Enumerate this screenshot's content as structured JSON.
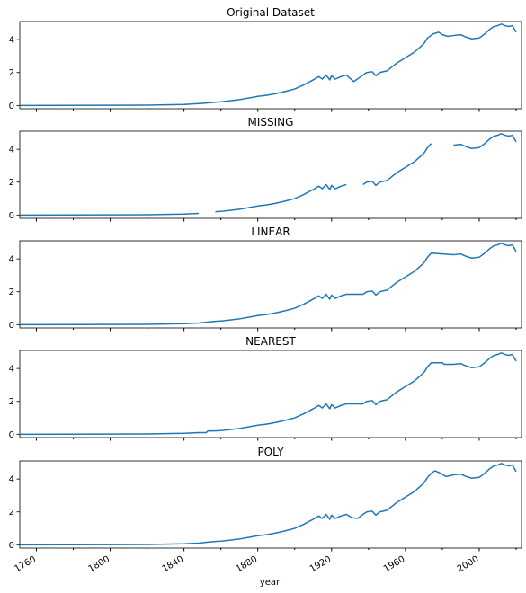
{
  "figure": {
    "xlabel": "year"
  },
  "chart_data": [
    {
      "type": "line",
      "title": "Original Dataset",
      "xlim": [
        1751,
        2020
      ],
      "ylim": [
        -0.2,
        5.1
      ],
      "yticks": [
        0,
        2,
        4
      ],
      "segments": [
        [
          [
            1751,
            0.0
          ],
          [
            1800,
            0.01
          ],
          [
            1820,
            0.02
          ],
          [
            1840,
            0.06
          ],
          [
            1850,
            0.13
          ],
          [
            1860,
            0.22
          ],
          [
            1870,
            0.35
          ],
          [
            1875,
            0.45
          ],
          [
            1880,
            0.55
          ],
          [
            1885,
            0.62
          ],
          [
            1890,
            0.72
          ],
          [
            1895,
            0.85
          ],
          [
            1900,
            1.0
          ],
          [
            1905,
            1.25
          ],
          [
            1910,
            1.55
          ],
          [
            1913,
            1.75
          ],
          [
            1915,
            1.6
          ],
          [
            1917,
            1.85
          ],
          [
            1919,
            1.55
          ],
          [
            1920,
            1.8
          ],
          [
            1922,
            1.6
          ],
          [
            1925,
            1.75
          ],
          [
            1928,
            1.85
          ],
          [
            1930,
            1.65
          ],
          [
            1932,
            1.45
          ],
          [
            1934,
            1.6
          ],
          [
            1937,
            1.85
          ],
          [
            1939,
            2.0
          ],
          [
            1942,
            2.05
          ],
          [
            1944,
            1.8
          ],
          [
            1946,
            2.0
          ],
          [
            1950,
            2.1
          ],
          [
            1955,
            2.55
          ],
          [
            1960,
            2.9
          ],
          [
            1965,
            3.25
          ],
          [
            1970,
            3.75
          ],
          [
            1972,
            4.1
          ],
          [
            1975,
            4.35
          ],
          [
            1978,
            4.45
          ],
          [
            1980,
            4.3
          ],
          [
            1983,
            4.2
          ],
          [
            1986,
            4.25
          ],
          [
            1990,
            4.3
          ],
          [
            1993,
            4.15
          ],
          [
            1996,
            4.05
          ],
          [
            2000,
            4.1
          ],
          [
            2003,
            4.35
          ],
          [
            2006,
            4.65
          ],
          [
            2008,
            4.8
          ],
          [
            2010,
            4.85
          ],
          [
            2012,
            4.95
          ],
          [
            2014,
            4.85
          ],
          [
            2016,
            4.8
          ],
          [
            2018,
            4.85
          ],
          [
            2020,
            4.45
          ]
        ]
      ]
    },
    {
      "type": "line",
      "title": "MISSING",
      "xlim": [
        1751,
        2020
      ],
      "ylim": [
        -0.2,
        5.1
      ],
      "yticks": [
        0,
        2,
        4
      ],
      "segments": [
        [
          [
            1751,
            0.0
          ],
          [
            1800,
            0.01
          ],
          [
            1820,
            0.02
          ],
          [
            1840,
            0.06
          ],
          [
            1848,
            0.1
          ]
        ],
        [
          [
            1857,
            0.2
          ],
          [
            1860,
            0.22
          ],
          [
            1870,
            0.35
          ],
          [
            1875,
            0.45
          ],
          [
            1880,
            0.55
          ],
          [
            1885,
            0.62
          ],
          [
            1890,
            0.72
          ],
          [
            1895,
            0.85
          ],
          [
            1900,
            1.0
          ],
          [
            1905,
            1.25
          ],
          [
            1910,
            1.55
          ],
          [
            1913,
            1.75
          ],
          [
            1915,
            1.6
          ],
          [
            1917,
            1.85
          ],
          [
            1919,
            1.55
          ],
          [
            1920,
            1.8
          ],
          [
            1922,
            1.6
          ],
          [
            1925,
            1.75
          ],
          [
            1928,
            1.85
          ]
        ],
        [
          [
            1937,
            1.85
          ],
          [
            1939,
            2.0
          ],
          [
            1942,
            2.05
          ],
          [
            1944,
            1.8
          ],
          [
            1946,
            2.0
          ],
          [
            1950,
            2.1
          ],
          [
            1955,
            2.55
          ],
          [
            1960,
            2.9
          ],
          [
            1965,
            3.25
          ],
          [
            1970,
            3.75
          ],
          [
            1972,
            4.1
          ],
          [
            1974,
            4.35
          ]
        ],
        [
          [
            1986,
            4.25
          ],
          [
            1990,
            4.3
          ],
          [
            1993,
            4.15
          ],
          [
            1996,
            4.05
          ],
          [
            2000,
            4.1
          ],
          [
            2003,
            4.35
          ],
          [
            2006,
            4.65
          ],
          [
            2008,
            4.8
          ],
          [
            2010,
            4.85
          ],
          [
            2012,
            4.95
          ],
          [
            2014,
            4.85
          ],
          [
            2016,
            4.8
          ],
          [
            2018,
            4.85
          ],
          [
            2020,
            4.45
          ]
        ]
      ]
    },
    {
      "type": "line",
      "title": "LINEAR",
      "xlim": [
        1751,
        2020
      ],
      "ylim": [
        -0.2,
        5.1
      ],
      "yticks": [
        0,
        2,
        4
      ],
      "segments": [
        [
          [
            1751,
            0.0
          ],
          [
            1800,
            0.01
          ],
          [
            1820,
            0.02
          ],
          [
            1840,
            0.06
          ],
          [
            1848,
            0.1
          ],
          [
            1857,
            0.2
          ],
          [
            1860,
            0.22
          ],
          [
            1870,
            0.35
          ],
          [
            1875,
            0.45
          ],
          [
            1880,
            0.55
          ],
          [
            1885,
            0.62
          ],
          [
            1890,
            0.72
          ],
          [
            1895,
            0.85
          ],
          [
            1900,
            1.0
          ],
          [
            1905,
            1.25
          ],
          [
            1910,
            1.55
          ],
          [
            1913,
            1.75
          ],
          [
            1915,
            1.6
          ],
          [
            1917,
            1.85
          ],
          [
            1919,
            1.55
          ],
          [
            1920,
            1.8
          ],
          [
            1922,
            1.6
          ],
          [
            1925,
            1.75
          ],
          [
            1928,
            1.85
          ],
          [
            1937,
            1.85
          ],
          [
            1939,
            2.0
          ],
          [
            1942,
            2.05
          ],
          [
            1944,
            1.8
          ],
          [
            1946,
            2.0
          ],
          [
            1950,
            2.1
          ],
          [
            1955,
            2.55
          ],
          [
            1960,
            2.9
          ],
          [
            1965,
            3.25
          ],
          [
            1970,
            3.75
          ],
          [
            1972,
            4.1
          ],
          [
            1974,
            4.35
          ],
          [
            1986,
            4.25
          ],
          [
            1990,
            4.3
          ],
          [
            1993,
            4.15
          ],
          [
            1996,
            4.05
          ],
          [
            2000,
            4.1
          ],
          [
            2003,
            4.35
          ],
          [
            2006,
            4.65
          ],
          [
            2008,
            4.8
          ],
          [
            2010,
            4.85
          ],
          [
            2012,
            4.95
          ],
          [
            2014,
            4.85
          ],
          [
            2016,
            4.8
          ],
          [
            2018,
            4.85
          ],
          [
            2020,
            4.45
          ]
        ]
      ]
    },
    {
      "type": "line",
      "title": "NEAREST",
      "xlim": [
        1751,
        2020
      ],
      "ylim": [
        -0.2,
        5.1
      ],
      "yticks": [
        0,
        2,
        4
      ],
      "segments": [
        [
          [
            1751,
            0.0
          ],
          [
            1800,
            0.01
          ],
          [
            1820,
            0.02
          ],
          [
            1840,
            0.06
          ],
          [
            1848,
            0.1
          ],
          [
            1852,
            0.1
          ],
          [
            1853,
            0.2
          ],
          [
            1857,
            0.2
          ],
          [
            1860,
            0.22
          ],
          [
            1870,
            0.35
          ],
          [
            1875,
            0.45
          ],
          [
            1880,
            0.55
          ],
          [
            1885,
            0.62
          ],
          [
            1890,
            0.72
          ],
          [
            1895,
            0.85
          ],
          [
            1900,
            1.0
          ],
          [
            1905,
            1.25
          ],
          [
            1910,
            1.55
          ],
          [
            1913,
            1.75
          ],
          [
            1915,
            1.6
          ],
          [
            1917,
            1.85
          ],
          [
            1919,
            1.55
          ],
          [
            1920,
            1.8
          ],
          [
            1922,
            1.6
          ],
          [
            1925,
            1.75
          ],
          [
            1928,
            1.85
          ],
          [
            1937,
            1.85
          ],
          [
            1939,
            2.0
          ],
          [
            1942,
            2.05
          ],
          [
            1944,
            1.8
          ],
          [
            1946,
            2.0
          ],
          [
            1950,
            2.1
          ],
          [
            1955,
            2.55
          ],
          [
            1960,
            2.9
          ],
          [
            1965,
            3.25
          ],
          [
            1970,
            3.75
          ],
          [
            1972,
            4.1
          ],
          [
            1974,
            4.35
          ],
          [
            1980,
            4.35
          ],
          [
            1981,
            4.25
          ],
          [
            1986,
            4.25
          ],
          [
            1990,
            4.3
          ],
          [
            1993,
            4.15
          ],
          [
            1996,
            4.05
          ],
          [
            2000,
            4.1
          ],
          [
            2003,
            4.35
          ],
          [
            2006,
            4.65
          ],
          [
            2008,
            4.8
          ],
          [
            2010,
            4.85
          ],
          [
            2012,
            4.95
          ],
          [
            2014,
            4.85
          ],
          [
            2016,
            4.8
          ],
          [
            2018,
            4.85
          ],
          [
            2020,
            4.45
          ]
        ]
      ]
    },
    {
      "type": "line",
      "title": "POLY",
      "xlim": [
        1751,
        2020
      ],
      "ylim": [
        -0.2,
        5.1
      ],
      "yticks": [
        0,
        2,
        4
      ],
      "segments": [
        [
          [
            1751,
            0.0
          ],
          [
            1800,
            0.01
          ],
          [
            1820,
            0.02
          ],
          [
            1840,
            0.06
          ],
          [
            1848,
            0.1
          ],
          [
            1850,
            0.13
          ],
          [
            1853,
            0.16
          ],
          [
            1857,
            0.2
          ],
          [
            1860,
            0.22
          ],
          [
            1870,
            0.35
          ],
          [
            1875,
            0.45
          ],
          [
            1880,
            0.55
          ],
          [
            1885,
            0.62
          ],
          [
            1890,
            0.72
          ],
          [
            1895,
            0.85
          ],
          [
            1900,
            1.0
          ],
          [
            1905,
            1.25
          ],
          [
            1910,
            1.55
          ],
          [
            1913,
            1.75
          ],
          [
            1915,
            1.6
          ],
          [
            1917,
            1.85
          ],
          [
            1919,
            1.55
          ],
          [
            1920,
            1.8
          ],
          [
            1922,
            1.6
          ],
          [
            1925,
            1.75
          ],
          [
            1928,
            1.85
          ],
          [
            1931,
            1.65
          ],
          [
            1934,
            1.6
          ],
          [
            1937,
            1.85
          ],
          [
            1939,
            2.0
          ],
          [
            1942,
            2.05
          ],
          [
            1944,
            1.8
          ],
          [
            1946,
            2.0
          ],
          [
            1950,
            2.1
          ],
          [
            1955,
            2.55
          ],
          [
            1960,
            2.9
          ],
          [
            1965,
            3.25
          ],
          [
            1970,
            3.75
          ],
          [
            1972,
            4.1
          ],
          [
            1974,
            4.35
          ],
          [
            1976,
            4.5
          ],
          [
            1979,
            4.35
          ],
          [
            1982,
            4.15
          ],
          [
            1984,
            4.2
          ],
          [
            1986,
            4.25
          ],
          [
            1990,
            4.3
          ],
          [
            1993,
            4.15
          ],
          [
            1996,
            4.05
          ],
          [
            2000,
            4.1
          ],
          [
            2003,
            4.35
          ],
          [
            2006,
            4.65
          ],
          [
            2008,
            4.8
          ],
          [
            2010,
            4.85
          ],
          [
            2012,
            4.95
          ],
          [
            2014,
            4.85
          ],
          [
            2016,
            4.8
          ],
          [
            2018,
            4.85
          ],
          [
            2020,
            4.45
          ]
        ]
      ]
    }
  ],
  "xticks": [
    1760,
    1800,
    1840,
    1880,
    1920,
    1960,
    2000
  ],
  "colors": {
    "line": "#1f77b4",
    "axis": "#000000",
    "text": "#000000"
  }
}
